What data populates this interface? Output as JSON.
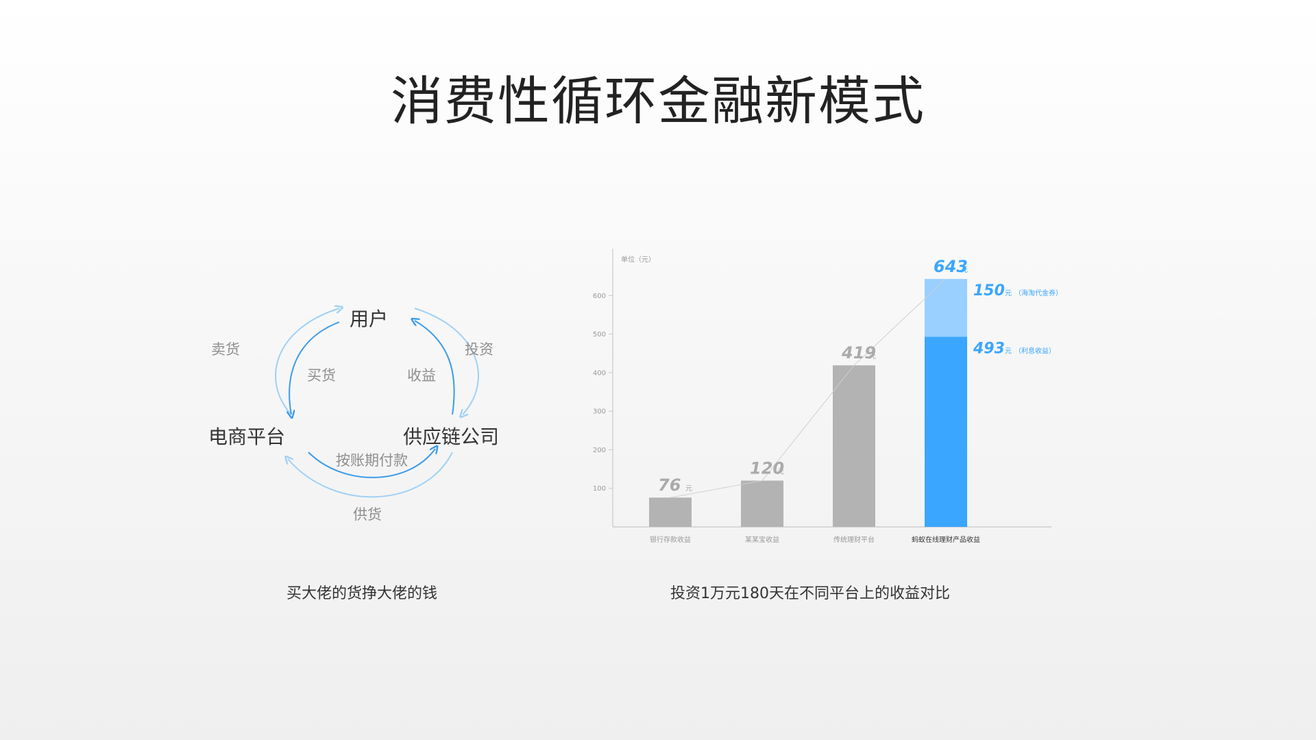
{
  "slide": {
    "title": "消费性循环金融新模式"
  },
  "cycle_diagram": {
    "nodes": {
      "top": "用户",
      "left": "电商平台",
      "right": "供应链公司"
    },
    "flows": {
      "outer_left": "卖货",
      "inner_left": "买货",
      "outer_right": "投资",
      "inner_right": "收益",
      "inner_bottom": "按账期付款",
      "outer_bottom": "供货"
    },
    "colors": {
      "outer": "#9fd0f4",
      "inner": "#3a9ae8"
    },
    "caption": "买大佬的货挣大佬的钱"
  },
  "chart_data": {
    "type": "bar",
    "unit_label": "单位（元）",
    "value_suffix": "元",
    "categories": [
      "银行存款收益",
      "某某宝收益",
      "传统理财平台",
      "蚂蚁在线理财产品收益"
    ],
    "values": [
      76,
      120,
      419,
      643
    ],
    "stacked_last": [
      {
        "value": 493,
        "label": "493",
        "suffix": "元",
        "note": "（利息收益）"
      },
      {
        "value": 150,
        "label": "150",
        "suffix": "元",
        "note": "（海淘代金券）"
      }
    ],
    "yticks": [
      100,
      200,
      300,
      400,
      500,
      600
    ],
    "ylim": [
      0,
      700
    ],
    "colors": {
      "gray": "#b3b3b3",
      "blue": "#3aa6ff",
      "light_blue": "#99d0ff"
    },
    "caption": "投资1万元180天在不同平台上的收益对比"
  }
}
